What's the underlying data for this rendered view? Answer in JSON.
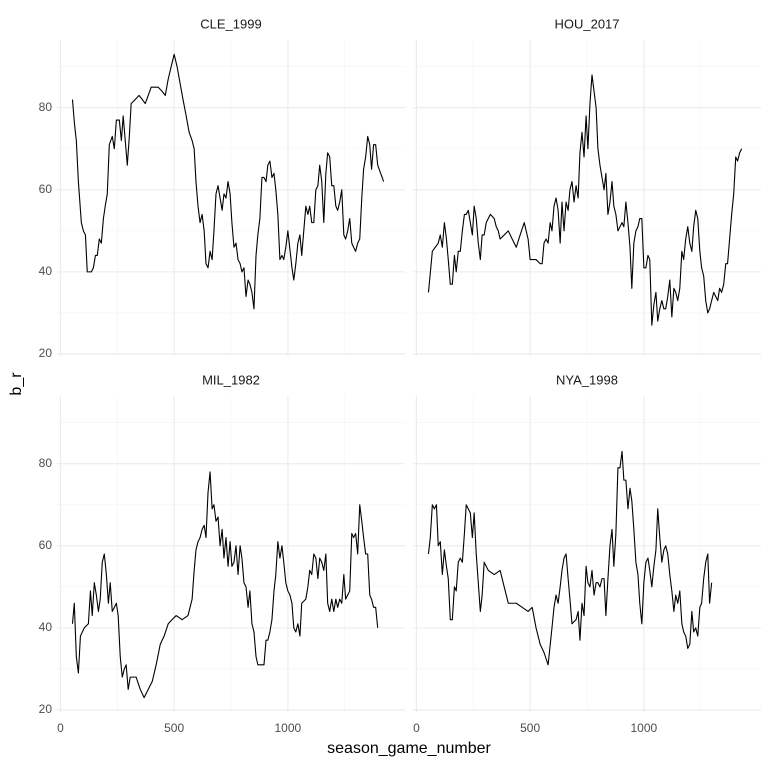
{
  "x_label": "season_game_number",
  "y_label": "b_r",
  "chart_data": [
    {
      "type": "line",
      "title": "CLE_1999",
      "color": "#000000",
      "grid": true,
      "xlim": [
        -15,
        1515
      ],
      "ylim": [
        19.5,
        96.5
      ],
      "xticks": [
        0,
        500,
        1000
      ],
      "yticks": [
        20,
        40,
        60,
        80
      ],
      "x": [
        53,
        62,
        70,
        79,
        92,
        101,
        110,
        118,
        136,
        145,
        154,
        162,
        171,
        180,
        189,
        197,
        206,
        215,
        228,
        237,
        246,
        259,
        268,
        276,
        285,
        294,
        303,
        311,
        329,
        346,
        360,
        373,
        386,
        399,
        430,
        447,
        461,
        474,
        487,
        500,
        513,
        526,
        539,
        553,
        566,
        579,
        588,
        596,
        605,
        614,
        623,
        632,
        640,
        649,
        658,
        667,
        675,
        684,
        693,
        702,
        711,
        719,
        728,
        737,
        746,
        754,
        763,
        772,
        781,
        790,
        798,
        807,
        816,
        825,
        833,
        842,
        851,
        860,
        868,
        877,
        886,
        895,
        904,
        912,
        921,
        930,
        939,
        947,
        956,
        965,
        974,
        982,
        991,
        1000,
        1018,
        1026,
        1035,
        1044,
        1053,
        1061,
        1070,
        1079,
        1088,
        1096,
        1105,
        1114,
        1123,
        1132,
        1140,
        1149,
        1158,
        1167,
        1175,
        1184,
        1193,
        1202,
        1211,
        1219,
        1228,
        1237,
        1246,
        1254,
        1263,
        1272,
        1281,
        1289,
        1298,
        1307,
        1316,
        1325,
        1333,
        1342,
        1351,
        1360,
        1368,
        1377,
        1386,
        1395,
        1421
      ],
      "values": [
        82,
        76,
        72,
        62,
        52,
        50,
        49,
        40,
        40,
        41,
        44,
        44,
        48,
        47,
        53,
        56,
        59,
        71,
        73,
        70,
        77,
        77,
        72,
        78,
        72,
        66,
        73,
        81,
        82,
        83,
        82,
        81,
        83,
        85,
        85,
        84,
        83,
        87,
        90,
        93,
        90,
        86,
        82,
        78,
        74,
        72,
        70,
        62,
        56,
        52,
        54,
        50,
        42,
        41,
        45,
        43,
        50,
        59,
        61,
        58,
        55,
        59,
        58,
        62,
        59,
        52,
        46,
        47,
        43,
        42,
        40,
        41,
        34,
        38,
        37,
        35,
        31,
        44,
        49,
        53,
        63,
        63,
        62,
        66,
        67,
        63,
        64,
        60,
        54,
        43,
        44,
        43,
        46,
        50,
        41,
        38,
        42,
        47,
        49,
        44,
        50,
        56,
        54,
        56,
        52,
        52,
        60,
        61,
        66,
        62,
        52,
        64,
        69,
        68,
        61,
        61,
        56,
        55,
        57,
        60,
        49,
        48,
        50,
        53,
        47,
        46,
        45,
        47,
        48,
        58,
        65,
        68,
        73,
        71,
        65,
        71,
        71,
        66,
        62
      ]
    },
    {
      "type": "line",
      "title": "HOU_2017",
      "color": "#000000",
      "grid": true,
      "xlim": [
        -15,
        1515
      ],
      "ylim": [
        19.5,
        96.5
      ],
      "xticks": [
        0,
        500,
        1000
      ],
      "yticks": [
        20,
        40,
        60,
        80
      ],
      "x": [
        53,
        70,
        96,
        105,
        114,
        123,
        132,
        140,
        149,
        158,
        167,
        175,
        184,
        193,
        202,
        211,
        219,
        228,
        237,
        246,
        254,
        263,
        272,
        281,
        289,
        298,
        307,
        325,
        342,
        351,
        360,
        368,
        386,
        404,
        421,
        439,
        456,
        474,
        491,
        500,
        526,
        544,
        553,
        561,
        570,
        579,
        588,
        596,
        605,
        614,
        623,
        632,
        640,
        649,
        658,
        667,
        675,
        684,
        693,
        702,
        711,
        719,
        728,
        737,
        746,
        754,
        763,
        772,
        781,
        790,
        798,
        807,
        816,
        825,
        833,
        842,
        851,
        860,
        868,
        877,
        886,
        895,
        904,
        912,
        921,
        930,
        939,
        947,
        956,
        965,
        974,
        982,
        991,
        1000,
        1009,
        1018,
        1026,
        1035,
        1044,
        1053,
        1061,
        1070,
        1079,
        1088,
        1096,
        1105,
        1114,
        1123,
        1132,
        1140,
        1149,
        1158,
        1167,
        1175,
        1184,
        1193,
        1202,
        1211,
        1219,
        1228,
        1237,
        1246,
        1254,
        1263,
        1272,
        1281,
        1289,
        1298,
        1307,
        1316,
        1325,
        1333,
        1342,
        1351,
        1360,
        1368,
        1377,
        1386,
        1395,
        1404,
        1412,
        1421,
        1430
      ],
      "values": [
        35,
        45,
        47,
        49,
        46,
        52,
        48,
        43,
        37,
        37,
        44,
        40,
        45,
        45,
        50,
        54,
        54,
        55,
        52,
        49,
        56,
        53,
        47,
        43,
        49,
        49,
        52,
        54,
        53,
        51,
        50,
        48,
        49,
        50,
        48,
        46,
        49,
        52,
        48,
        43,
        43,
        42,
        42,
        47,
        48,
        47,
        52,
        50,
        56,
        58,
        55,
        47,
        57,
        50,
        57,
        55,
        60,
        62,
        57,
        61,
        58,
        69,
        74,
        68,
        78,
        70,
        81,
        88,
        84,
        80,
        70,
        66,
        63,
        60,
        64,
        54,
        57,
        62,
        56,
        54,
        50,
        51,
        52,
        51,
        57,
        52,
        46,
        36,
        47,
        50,
        51,
        53,
        53,
        41,
        41,
        44,
        43,
        27,
        32,
        35,
        28,
        31,
        33,
        31,
        31,
        34,
        38,
        29,
        36,
        35,
        33,
        36,
        45,
        43,
        48,
        51,
        47,
        45,
        51,
        55,
        53,
        45,
        41,
        39,
        33,
        30,
        31,
        33,
        35,
        34,
        33,
        36,
        35,
        37,
        42,
        42,
        48,
        54,
        59,
        68,
        67,
        69,
        70
      ]
    },
    {
      "type": "line",
      "title": "MIL_1982",
      "color": "#000000",
      "grid": true,
      "xlim": [
        -15,
        1515
      ],
      "ylim": [
        19.5,
        96.5
      ],
      "xticks": [
        0,
        500,
        1000
      ],
      "yticks": [
        20,
        40,
        60,
        80
      ],
      "x": [
        53,
        61,
        70,
        79,
        88,
        105,
        123,
        132,
        140,
        149,
        158,
        167,
        175,
        184,
        193,
        202,
        211,
        219,
        228,
        237,
        246,
        254,
        263,
        272,
        281,
        289,
        298,
        307,
        333,
        351,
        368,
        386,
        404,
        421,
        439,
        456,
        474,
        491,
        509,
        535,
        561,
        579,
        588,
        596,
        605,
        614,
        623,
        632,
        640,
        649,
        658,
        667,
        675,
        684,
        693,
        702,
        711,
        719,
        728,
        737,
        746,
        754,
        763,
        772,
        781,
        790,
        798,
        807,
        816,
        825,
        833,
        842,
        851,
        860,
        868,
        895,
        904,
        912,
        921,
        930,
        939,
        947,
        956,
        965,
        974,
        982,
        991,
        1000,
        1009,
        1018,
        1026,
        1035,
        1044,
        1053,
        1061,
        1079,
        1088,
        1096,
        1105,
        1114,
        1123,
        1132,
        1140,
        1149,
        1158,
        1167,
        1175,
        1184,
        1193,
        1202,
        1211,
        1219,
        1228,
        1237,
        1246,
        1254,
        1263,
        1272,
        1281,
        1289,
        1298,
        1307,
        1316,
        1325,
        1333,
        1342,
        1351,
        1360,
        1368,
        1377,
        1386,
        1395
      ],
      "values": [
        41,
        46,
        33,
        29,
        38,
        40,
        41,
        49,
        43,
        51,
        48,
        44,
        47,
        56,
        58,
        53,
        46,
        51,
        44,
        45,
        46,
        43,
        33,
        28,
        30,
        31,
        25,
        28,
        28,
        25,
        23,
        25,
        27,
        31,
        36,
        38,
        41,
        42,
        43,
        42,
        43,
        47,
        54,
        59,
        61,
        62,
        64,
        65,
        62,
        73,
        78,
        69,
        70,
        66,
        67,
        60,
        64,
        57,
        62,
        55,
        61,
        55,
        56,
        60,
        53,
        60,
        57,
        51,
        50,
        45,
        49,
        41,
        39,
        33,
        31,
        31,
        37,
        37,
        39,
        42,
        49,
        53,
        61,
        57,
        60,
        56,
        51,
        49,
        48,
        46,
        40,
        39,
        41,
        38,
        46,
        47,
        50,
        54,
        53,
        58,
        57,
        52,
        57,
        56,
        54,
        58,
        46,
        44,
        47,
        44,
        47,
        45,
        47,
        46,
        53,
        47,
        48,
        49,
        63,
        62,
        63,
        58,
        70,
        66,
        62,
        58,
        58,
        48,
        47,
        45,
        45,
        40
      ]
    },
    {
      "type": "line",
      "title": "NYA_1998",
      "color": "#000000",
      "grid": true,
      "xlim": [
        -15,
        1515
      ],
      "ylim": [
        19.5,
        96.5
      ],
      "xticks": [
        0,
        500,
        1000
      ],
      "yticks": [
        20,
        40,
        60,
        80
      ],
      "x": [
        53,
        61,
        70,
        79,
        88,
        96,
        105,
        114,
        123,
        132,
        140,
        149,
        158,
        167,
        175,
        184,
        193,
        202,
        211,
        219,
        228,
        237,
        246,
        254,
        263,
        272,
        281,
        289,
        298,
        307,
        316,
        342,
        368,
        386,
        404,
        439,
        465,
        491,
        509,
        526,
        544,
        561,
        579,
        596,
        605,
        614,
        623,
        632,
        640,
        649,
        658,
        667,
        675,
        684,
        702,
        711,
        719,
        728,
        737,
        746,
        754,
        763,
        772,
        781,
        790,
        798,
        807,
        816,
        825,
        833,
        842,
        851,
        860,
        868,
        877,
        886,
        895,
        904,
        912,
        921,
        930,
        939,
        947,
        956,
        965,
        974,
        982,
        991,
        1000,
        1009,
        1018,
        1026,
        1035,
        1044,
        1053,
        1061,
        1070,
        1079,
        1088,
        1096,
        1105,
        1114,
        1123,
        1132,
        1140,
        1149,
        1158,
        1167,
        1175,
        1184,
        1193,
        1202,
        1211,
        1219,
        1228,
        1237,
        1246,
        1254,
        1263,
        1272,
        1281,
        1289,
        1298
      ],
      "values": [
        58,
        62,
        70,
        69,
        70,
        60,
        61,
        53,
        59,
        55,
        52,
        42,
        42,
        50,
        49,
        56,
        57,
        56,
        63,
        70,
        69,
        68,
        62,
        68,
        58,
        51,
        44,
        48,
        56,
        55,
        54,
        53,
        54,
        50,
        46,
        46,
        45,
        44,
        45,
        40,
        36,
        34,
        31,
        40,
        45,
        48,
        46,
        50,
        54,
        57,
        58,
        52,
        47,
        41,
        42,
        44,
        37,
        46,
        43,
        55,
        51,
        50,
        54,
        48,
        51,
        51,
        50,
        52,
        52,
        43,
        52,
        60,
        64,
        55,
        63,
        79,
        79,
        83,
        76,
        76,
        69,
        74,
        71,
        64,
        56,
        53,
        46,
        41,
        51,
        56,
        57,
        54,
        50,
        55,
        59,
        69,
        62,
        56,
        59,
        60,
        58,
        53,
        49,
        44,
        48,
        46,
        49,
        41,
        39,
        38,
        35,
        36,
        44,
        39,
        40,
        38,
        45,
        46,
        52,
        56,
        58,
        46,
        51
      ]
    }
  ]
}
